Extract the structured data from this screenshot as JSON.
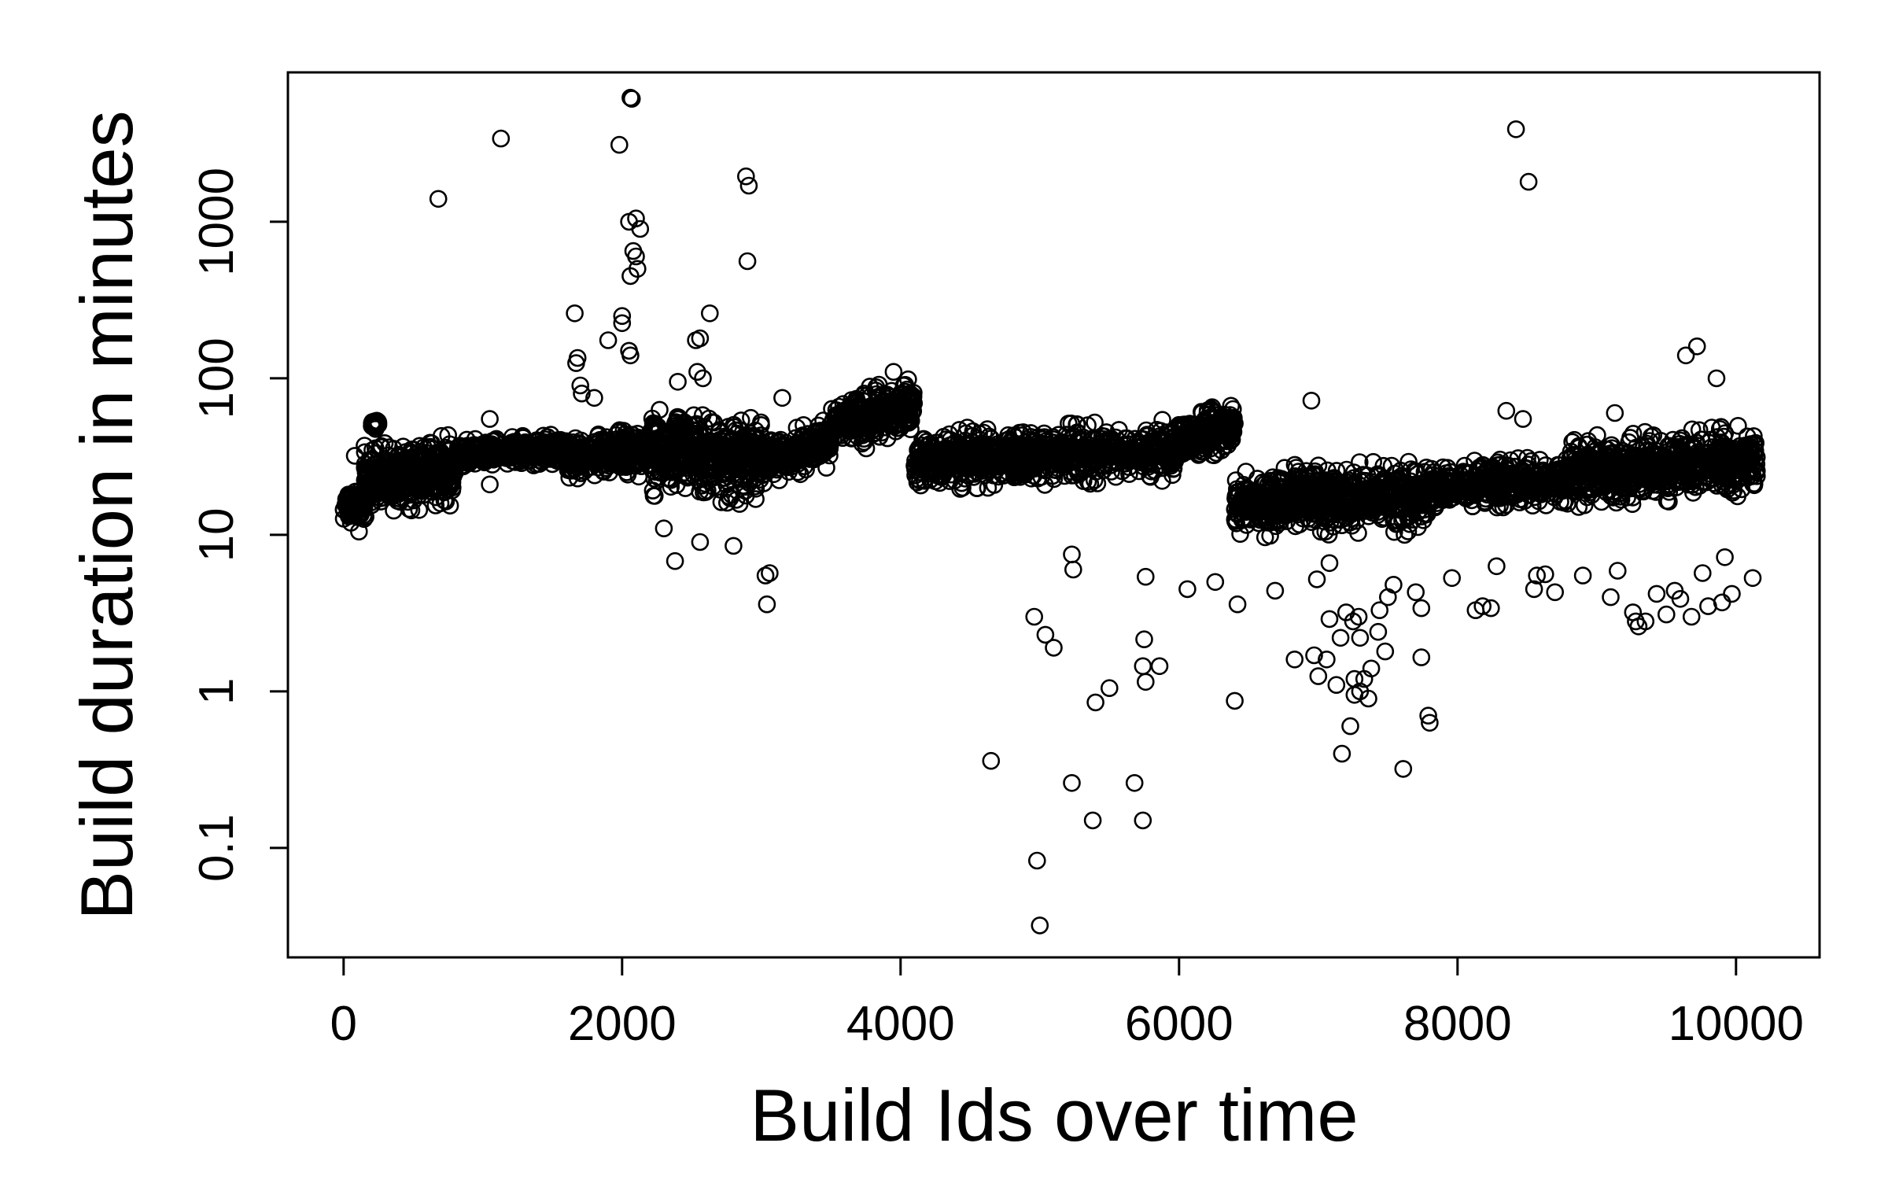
{
  "chart_data": {
    "type": "scatter",
    "xlabel": "Build Ids over time",
    "ylabel": "Build duration in minutes",
    "xlim": [
      -400,
      10600
    ],
    "ylim": [
      0.02,
      9000
    ],
    "yscale": "log",
    "x_ticks": [
      0,
      2000,
      4000,
      6000,
      8000,
      10000
    ],
    "y_ticks": [
      0.1,
      1,
      10,
      100,
      1000
    ],
    "y_tick_labels": [
      "0.1",
      "1",
      "10",
      "100",
      "1000"
    ],
    "marker": "open-circle",
    "point_color": "#000000",
    "baseline_segments": [
      {
        "x0": 0,
        "x1": 150,
        "y0": 15,
        "y1": 16,
        "spread": 0.18,
        "count": 90
      },
      {
        "x0": 150,
        "x1": 800,
        "y0": 22,
        "y1": 26,
        "spread": 0.35,
        "count": 420
      },
      {
        "x0": 200,
        "x1": 250,
        "y0": 50,
        "y1": 52,
        "spread": 0.05,
        "count": 40
      },
      {
        "x0": 800,
        "x1": 1600,
        "y0": 32,
        "y1": 36,
        "spread": 0.15,
        "count": 380
      },
      {
        "x0": 1600,
        "x1": 2200,
        "y0": 30,
        "y1": 35,
        "spread": 0.25,
        "count": 280
      },
      {
        "x0": 2200,
        "x1": 3000,
        "y0": 35,
        "y1": 30,
        "spread": 0.45,
        "count": 420
      },
      {
        "x0": 3000,
        "x1": 3500,
        "y0": 30,
        "y1": 38,
        "spread": 0.25,
        "count": 240
      },
      {
        "x0": 3500,
        "x1": 4100,
        "y0": 50,
        "y1": 65,
        "spread": 0.3,
        "count": 300
      },
      {
        "x0": 4100,
        "x1": 6000,
        "y0": 30,
        "y1": 35,
        "spread": 0.3,
        "count": 800
      },
      {
        "x0": 6000,
        "x1": 6400,
        "y0": 40,
        "y1": 50,
        "spread": 0.25,
        "count": 220
      },
      {
        "x0": 6400,
        "x1": 7800,
        "y0": 16,
        "y1": 18,
        "spread": 0.35,
        "count": 700
      },
      {
        "x0": 7800,
        "x1": 8800,
        "y0": 20,
        "y1": 22,
        "spread": 0.25,
        "count": 450
      },
      {
        "x0": 8800,
        "x1": 10150,
        "y0": 25,
        "y1": 30,
        "spread": 0.35,
        "count": 650
      }
    ],
    "points": [
      {
        "x": 680,
        "y": 1400
      },
      {
        "x": 1130,
        "y": 3400
      },
      {
        "x": 1980,
        "y": 3100
      },
      {
        "x": 2060,
        "y": 6200
      },
      {
        "x": 2070,
        "y": 6100
      },
      {
        "x": 2050,
        "y": 1000
      },
      {
        "x": 2100,
        "y": 1050
      },
      {
        "x": 2130,
        "y": 900
      },
      {
        "x": 2080,
        "y": 650
      },
      {
        "x": 2100,
        "y": 600
      },
      {
        "x": 2060,
        "y": 450
      },
      {
        "x": 2110,
        "y": 500
      },
      {
        "x": 2890,
        "y": 1950
      },
      {
        "x": 2910,
        "y": 1700
      },
      {
        "x": 2900,
        "y": 560
      },
      {
        "x": 8420,
        "y": 3900
      },
      {
        "x": 8510,
        "y": 1800
      },
      {
        "x": 1660,
        "y": 260
      },
      {
        "x": 1670,
        "y": 125
      },
      {
        "x": 1680,
        "y": 135
      },
      {
        "x": 1700,
        "y": 90
      },
      {
        "x": 1710,
        "y": 80
      },
      {
        "x": 1900,
        "y": 175
      },
      {
        "x": 2000,
        "y": 250
      },
      {
        "x": 2000,
        "y": 225
      },
      {
        "x": 2050,
        "y": 150
      },
      {
        "x": 2060,
        "y": 140
      },
      {
        "x": 2400,
        "y": 95
      },
      {
        "x": 2530,
        "y": 175
      },
      {
        "x": 2560,
        "y": 180
      },
      {
        "x": 2630,
        "y": 260
      },
      {
        "x": 3950,
        "y": 110
      },
      {
        "x": 2540,
        "y": 110
      },
      {
        "x": 2580,
        "y": 100
      },
      {
        "x": 3150,
        "y": 75
      },
      {
        "x": 1050,
        "y": 55
      },
      {
        "x": 1800,
        "y": 75
      },
      {
        "x": 9640,
        "y": 140
      },
      {
        "x": 9720,
        "y": 160
      },
      {
        "x": 9860,
        "y": 100
      },
      {
        "x": 9130,
        "y": 60
      },
      {
        "x": 8470,
        "y": 55
      },
      {
        "x": 8350,
        "y": 62
      },
      {
        "x": 6950,
        "y": 72
      },
      {
        "x": 2300,
        "y": 11
      },
      {
        "x": 2380,
        "y": 6.8
      },
      {
        "x": 2560,
        "y": 9
      },
      {
        "x": 2800,
        "y": 8.5
      },
      {
        "x": 3030,
        "y": 5.5
      },
      {
        "x": 3040,
        "y": 3.6
      },
      {
        "x": 3060,
        "y": 5.7
      },
      {
        "x": 110,
        "y": 10.5
      },
      {
        "x": 80,
        "y": 32
      },
      {
        "x": 1050,
        "y": 21
      },
      {
        "x": 4650,
        "y": 0.36
      },
      {
        "x": 4960,
        "y": 3
      },
      {
        "x": 5040,
        "y": 2.3
      },
      {
        "x": 5100,
        "y": 1.9
      },
      {
        "x": 4980,
        "y": 0.083
      },
      {
        "x": 5000,
        "y": 0.032
      },
      {
        "x": 5230,
        "y": 0.26
      },
      {
        "x": 5380,
        "y": 0.15
      },
      {
        "x": 5400,
        "y": 0.85
      },
      {
        "x": 5500,
        "y": 1.05
      },
      {
        "x": 5230,
        "y": 7.5
      },
      {
        "x": 5240,
        "y": 6
      },
      {
        "x": 5680,
        "y": 0.26
      },
      {
        "x": 5740,
        "y": 0.15
      },
      {
        "x": 5740,
        "y": 1.45
      },
      {
        "x": 5760,
        "y": 1.15
      },
      {
        "x": 5750,
        "y": 2.15
      },
      {
        "x": 5760,
        "y": 5.4
      },
      {
        "x": 5860,
        "y": 1.45
      },
      {
        "x": 6060,
        "y": 4.5
      },
      {
        "x": 6260,
        "y": 5
      },
      {
        "x": 6420,
        "y": 3.6
      },
      {
        "x": 6400,
        "y": 0.87
      },
      {
        "x": 6690,
        "y": 4.4
      },
      {
        "x": 6830,
        "y": 1.6
      },
      {
        "x": 6970,
        "y": 1.7
      },
      {
        "x": 7000,
        "y": 1.25
      },
      {
        "x": 7060,
        "y": 1.6
      },
      {
        "x": 7080,
        "y": 2.9
      },
      {
        "x": 7130,
        "y": 1.1
      },
      {
        "x": 7170,
        "y": 0.4
      },
      {
        "x": 7230,
        "y": 0.6
      },
      {
        "x": 7260,
        "y": 0.95
      },
      {
        "x": 7260,
        "y": 1.2
      },
      {
        "x": 7300,
        "y": 1.0
      },
      {
        "x": 7330,
        "y": 1.2
      },
      {
        "x": 7360,
        "y": 0.9
      },
      {
        "x": 7380,
        "y": 1.4
      },
      {
        "x": 7160,
        "y": 2.2
      },
      {
        "x": 7200,
        "y": 3.2
      },
      {
        "x": 7250,
        "y": 2.8
      },
      {
        "x": 7290,
        "y": 3
      },
      {
        "x": 7300,
        "y": 2.2
      },
      {
        "x": 7430,
        "y": 2.4
      },
      {
        "x": 7480,
        "y": 1.8
      },
      {
        "x": 7440,
        "y": 3.3
      },
      {
        "x": 7500,
        "y": 4.0
      },
      {
        "x": 7540,
        "y": 4.8
      },
      {
        "x": 7610,
        "y": 0.32
      },
      {
        "x": 7740,
        "y": 1.65
      },
      {
        "x": 7790,
        "y": 0.7
      },
      {
        "x": 7800,
        "y": 0.63
      },
      {
        "x": 7700,
        "y": 4.3
      },
      {
        "x": 7740,
        "y": 3.4
      },
      {
        "x": 7960,
        "y": 5.3
      },
      {
        "x": 8130,
        "y": 3.3
      },
      {
        "x": 8180,
        "y": 3.5
      },
      {
        "x": 8240,
        "y": 3.4
      },
      {
        "x": 8280,
        "y": 6.3
      },
      {
        "x": 8570,
        "y": 5.5
      },
      {
        "x": 8630,
        "y": 5.6
      },
      {
        "x": 8700,
        "y": 4.3
      },
      {
        "x": 8900,
        "y": 5.5
      },
      {
        "x": 9100,
        "y": 4.0
      },
      {
        "x": 9150,
        "y": 5.9
      },
      {
        "x": 9260,
        "y": 3.2
      },
      {
        "x": 9280,
        "y": 2.8
      },
      {
        "x": 9300,
        "y": 2.6
      },
      {
        "x": 9350,
        "y": 2.8
      },
      {
        "x": 9430,
        "y": 4.2
      },
      {
        "x": 9500,
        "y": 3.1
      },
      {
        "x": 9560,
        "y": 4.4
      },
      {
        "x": 9600,
        "y": 3.9
      },
      {
        "x": 9680,
        "y": 3.0
      },
      {
        "x": 9760,
        "y": 5.7
      },
      {
        "x": 9800,
        "y": 3.5
      },
      {
        "x": 9900,
        "y": 3.7
      },
      {
        "x": 9920,
        "y": 7.2
      },
      {
        "x": 9970,
        "y": 4.2
      },
      {
        "x": 10120,
        "y": 5.3
      },
      {
        "x": 8550,
        "y": 4.5
      },
      {
        "x": 7620,
        "y": 10
      },
      {
        "x": 7080,
        "y": 6.6
      },
      {
        "x": 6990,
        "y": 5.2
      }
    ]
  }
}
